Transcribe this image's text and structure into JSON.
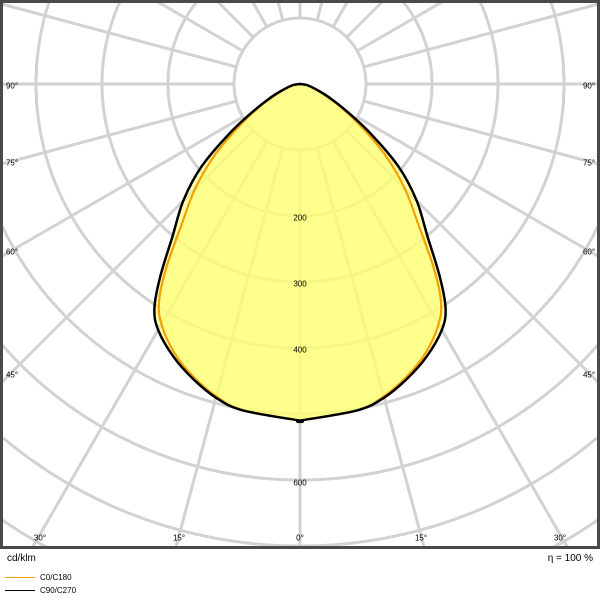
{
  "chart_data": {
    "type": "polar",
    "unit_label": "cd/klm",
    "efficiency_label": "η = 100 %",
    "radial_ticks": [
      100,
      200,
      300,
      400,
      500,
      600,
      700,
      800
    ],
    "radial_tick_labels": [
      "200",
      "300",
      "400",
      "600"
    ],
    "angle_labels_side": [
      "90°",
      "75°",
      "60°",
      "45°"
    ],
    "angle_labels_bottom": [
      "30°",
      "15°",
      "0°",
      "15°",
      "30°"
    ],
    "grid": true,
    "legend_placement": "bottom-left",
    "series": [
      {
        "name": "C0/C180",
        "color": "#f5a000",
        "angles": [
          0,
          10,
          15,
          20,
          25,
          30,
          33,
          36,
          40,
          45,
          50,
          55,
          60,
          65,
          70,
          80,
          90
        ],
        "values": [
          510,
          502,
          490,
          472,
          450,
          420,
          392,
          345,
          280,
          225,
          170,
          115,
          75,
          45,
          28,
          10,
          0
        ]
      },
      {
        "name": "C90/C270",
        "color": "#000000",
        "angles": [
          0,
          10,
          15,
          20,
          25,
          30,
          33,
          36,
          40,
          45,
          50,
          55,
          60,
          65,
          70,
          80,
          90
        ],
        "values": [
          510,
          502,
          492,
          475,
          455,
          430,
          405,
          360,
          300,
          250,
          195,
          130,
          80,
          50,
          30,
          12,
          0
        ]
      }
    ]
  },
  "colors": {
    "fill": "#ffff70",
    "grid": "#d2d2d2",
    "frame": "#4a4a4a"
  }
}
